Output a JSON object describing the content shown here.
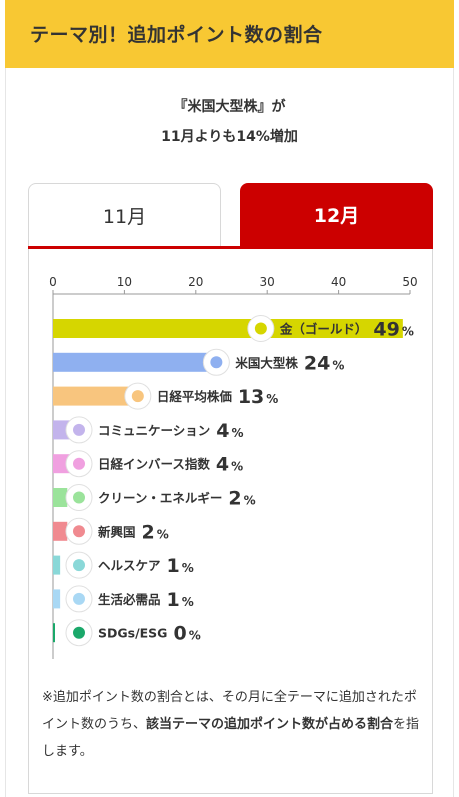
{
  "header": {
    "title": "テーマ別！追加ポイント数の割合"
  },
  "headline": {
    "line1": "『米国大型株』が",
    "line2": "11月よりも14%増加"
  },
  "tabs": [
    {
      "label": "11月",
      "active": false
    },
    {
      "label": "12月",
      "active": true
    }
  ],
  "colors": {
    "header_bg": "#f8c833",
    "accent": "#cc0000"
  },
  "chart_data": {
    "type": "bar",
    "orientation": "horizontal",
    "xlim": [
      0,
      50
    ],
    "xticks": [
      "0",
      "10",
      "20",
      "30",
      "40",
      "50"
    ],
    "grid": false,
    "value_suffix": "%",
    "categories": [
      "金（ゴールド）",
      "米国大型株",
      "日経平均株価",
      "コミュニケーション",
      "日経インバース指数",
      "クリーン・エネルギー",
      "新興国",
      "ヘルスケア",
      "生活必需品",
      "SDGs/ESG"
    ],
    "values": [
      49,
      24,
      13,
      4,
      4,
      2,
      2,
      1,
      1,
      0
    ],
    "value_labels": [
      "49",
      "24",
      "13",
      "4",
      "4",
      "2",
      "2",
      "1",
      "1",
      "0"
    ],
    "bar_colors": [
      "#d6d600",
      "#8fb0f0",
      "#f8c57e",
      "#c3b4ec",
      "#f0a0e0",
      "#9be39b",
      "#f08a90",
      "#8ad8d8",
      "#a9d8f4",
      "#1aa86a"
    ],
    "icons": [
      "gold-bar-icon",
      "us-flag-icon",
      "japan-flag-icon",
      "chat-bubbles-icon",
      "down-chart-icon",
      "wind-turbine-icon",
      "buildings-icon",
      "stethoscope-icon",
      "toilet-roll-icon",
      "sprout-icon"
    ]
  },
  "note": {
    "part1": "※追加ポイント数の割合とは、その月に全テーマに追加されたポイント数のうち、",
    "bold1": "該当テーマの追加ポイント数が占める割合",
    "part2": "を指します。"
  }
}
